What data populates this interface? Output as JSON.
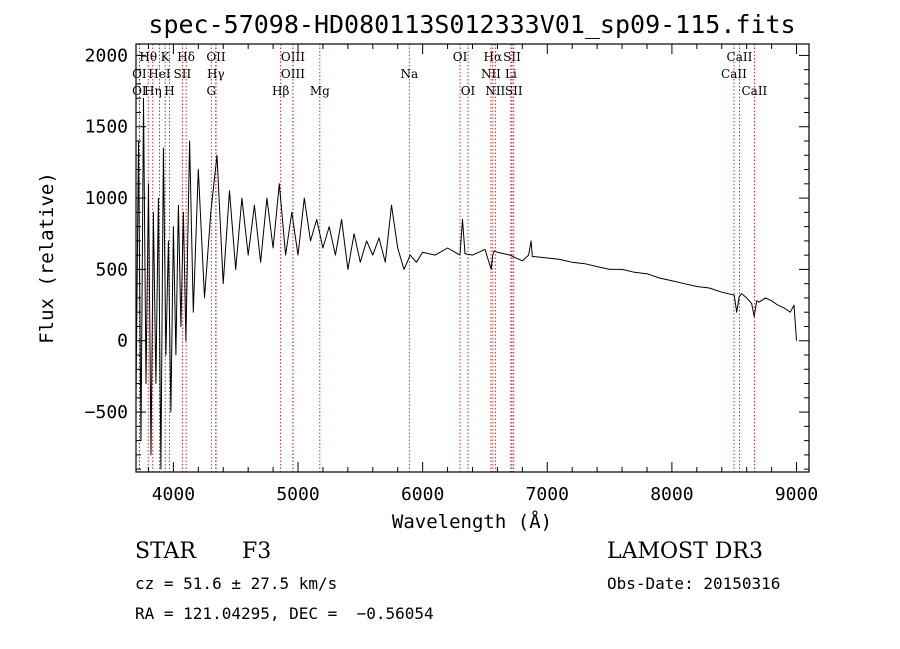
{
  "chart_data": {
    "type": "line",
    "title": "spec-57098-HD080113S012333V01_sp09-115.fits",
    "xlabel": "Wavelength (Å)",
    "ylabel": "Flux (relative)",
    "xlim": [
      3700,
      9100
    ],
    "ylim": [
      -920,
      2080
    ],
    "xticks": [
      4000,
      5000,
      6000,
      7000,
      8000,
      9000
    ],
    "xtick_labels": [
      "4000",
      "5000",
      "6000",
      "7000",
      "8000",
      "9000"
    ],
    "yticks": [
      -500,
      0,
      500,
      1000,
      1500,
      2000
    ],
    "ytick_labels": [
      "−500",
      "0",
      "500",
      "1000",
      "1500",
      "2000"
    ],
    "series": [
      {
        "name": "spectrum",
        "x": [
          3700,
          3720,
          3740,
          3760,
          3780,
          3800,
          3820,
          3840,
          3860,
          3880,
          3900,
          3920,
          3940,
          3960,
          3980,
          4000,
          4020,
          4040,
          4060,
          4080,
          4100,
          4130,
          4160,
          4200,
          4250,
          4300,
          4350,
          4400,
          4450,
          4500,
          4550,
          4600,
          4650,
          4700,
          4750,
          4800,
          4850,
          4900,
          4950,
          5000,
          5050,
          5100,
          5150,
          5200,
          5250,
          5300,
          5350,
          5400,
          5450,
          5500,
          5550,
          5600,
          5650,
          5700,
          5750,
          5800,
          5850,
          5900,
          5950,
          6000,
          6100,
          6200,
          6300,
          6320,
          6340,
          6400,
          6500,
          6550,
          6562,
          6575,
          6600,
          6700,
          6800,
          6850,
          6870,
          6880,
          6900,
          7000,
          7100,
          7200,
          7300,
          7400,
          7500,
          7600,
          7700,
          7800,
          7900,
          8000,
          8100,
          8200,
          8300,
          8400,
          8500,
          8520,
          8540,
          8560,
          8600,
          8640,
          8660,
          8680,
          8700,
          8750,
          8800,
          8850,
          8900,
          8950,
          8980,
          9000
        ],
        "values": [
          -400,
          1400,
          -700,
          1700,
          -300,
          1100,
          -800,
          900,
          -300,
          1000,
          -900,
          1350,
          -100,
          700,
          -500,
          800,
          -100,
          950,
          100,
          900,
          0,
          1400,
          200,
          1200,
          300,
          900,
          1300,
          400,
          1050,
          500,
          1000,
          600,
          950,
          550,
          1000,
          650,
          1100,
          600,
          900,
          600,
          1000,
          700,
          850,
          650,
          800,
          600,
          850,
          500,
          750,
          550,
          700,
          600,
          720,
          550,
          950,
          650,
          500,
          600,
          550,
          620,
          600,
          650,
          600,
          850,
          610,
          600,
          640,
          500,
          600,
          630,
          620,
          600,
          560,
          600,
          700,
          590,
          590,
          580,
          570,
          550,
          540,
          520,
          500,
          500,
          480,
          470,
          440,
          420,
          400,
          380,
          370,
          340,
          320,
          200,
          310,
          330,
          300,
          260,
          170,
          280,
          270,
          300,
          280,
          250,
          230,
          200,
          250,
          0
        ]
      }
    ],
    "line_markers": [
      {
        "label": "Hθ",
        "wl": 3798,
        "row": 1
      },
      {
        "label": "K",
        "wl": 3934,
        "row": 1
      },
      {
        "label": "Hδ",
        "wl": 4102,
        "row": 1
      },
      {
        "label": "OII",
        "wl": 4342,
        "row": 1
      },
      {
        "label": "OIII",
        "wl": 4959,
        "row": 1
      },
      {
        "label": "OI",
        "wl": 6300,
        "row": 1
      },
      {
        "label": "Hα",
        "wl": 6563,
        "row": 1
      },
      {
        "label": "SII",
        "wl": 6717,
        "row": 1
      },
      {
        "label": "CaII",
        "wl": 8542,
        "row": 1
      },
      {
        "label": "OI",
        "wl": 3727,
        "row": 2
      },
      {
        "label": "HeI",
        "wl": 3888,
        "row": 2
      },
      {
        "label": "SII",
        "wl": 4072,
        "row": 2
      },
      {
        "label": "Hγ",
        "wl": 4340,
        "row": 2
      },
      {
        "label": "OIII",
        "wl": 4959,
        "row": 2
      },
      {
        "label": "Na",
        "wl": 5893,
        "row": 2
      },
      {
        "label": "NII",
        "wl": 6548,
        "row": 2
      },
      {
        "label": "Li",
        "wl": 6708,
        "row": 2
      },
      {
        "label": "CaII",
        "wl": 8498,
        "row": 2
      },
      {
        "label": "OI",
        "wl": 3727,
        "row": 3
      },
      {
        "label": "Hη",
        "wl": 3835,
        "row": 3
      },
      {
        "label": "H",
        "wl": 3969,
        "row": 3
      },
      {
        "label": "G",
        "wl": 4304,
        "row": 3
      },
      {
        "label": "Hβ",
        "wl": 4861,
        "row": 3
      },
      {
        "label": "Mg",
        "wl": 5175,
        "row": 3
      },
      {
        "label": "OI",
        "wl": 6364,
        "row": 3
      },
      {
        "label": "NII",
        "wl": 6583,
        "row": 3
      },
      {
        "label": "SII",
        "wl": 6731,
        "row": 3
      },
      {
        "label": "CaII",
        "wl": 8662,
        "row": 3
      }
    ],
    "colors": {
      "spectrum": "#000000",
      "markers": "#aa0000",
      "axes": "#000000"
    }
  },
  "info": {
    "object_type": "STAR",
    "subclass": "F3",
    "survey": "LAMOST DR3",
    "redshift": "cz = 51.6 ± 27.5 km/s",
    "obs_date": "Obs-Date: 20150316",
    "coords": "RA = 121.04295, DEC =  −0.56054"
  }
}
